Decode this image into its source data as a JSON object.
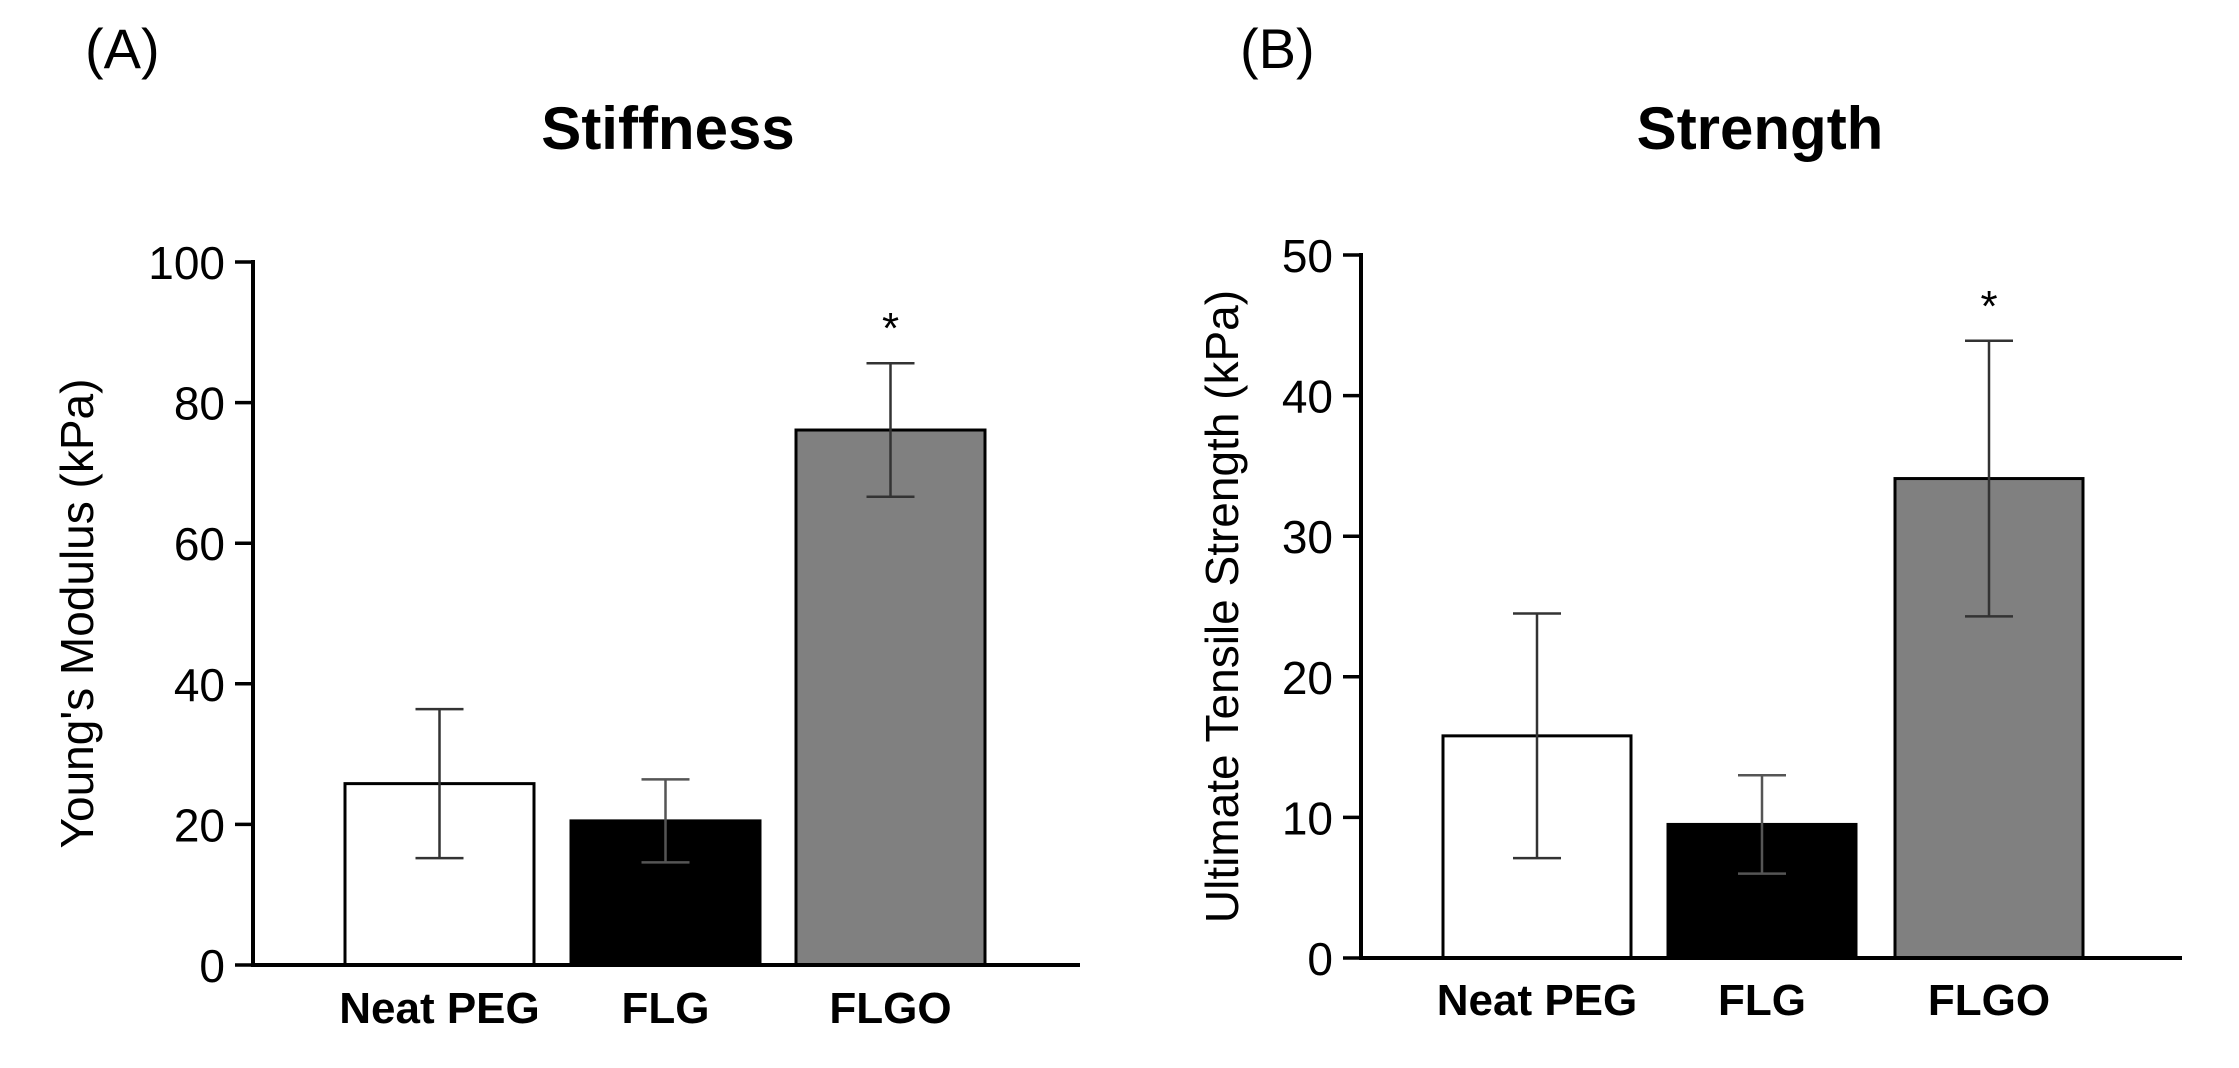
{
  "chart_data": [
    {
      "type": "bar",
      "panel_label": "(A)",
      "title": "Stiffness",
      "xlabel": "",
      "ylabel": "Young's Modulus (kPa)",
      "categories": [
        "Neat PEG",
        "FLG",
        "FLGO"
      ],
      "values": [
        25.8,
        20.5,
        76.1
      ],
      "error": [
        10.6,
        5.9,
        9.5
      ],
      "ylim": [
        0,
        100
      ],
      "yticks": [
        0,
        20,
        40,
        60,
        80,
        100
      ],
      "ytick_labels": [
        "0",
        "20",
        "40",
        "60",
        "80",
        "100"
      ],
      "bar_colors": [
        "#ffffff",
        "#000000",
        "#808080"
      ],
      "annotations": [
        "",
        "",
        "*"
      ],
      "grid": false
    },
    {
      "type": "bar",
      "panel_label": "(B)",
      "title": "Strength",
      "xlabel": "",
      "ylabel": "Ultimate Tensile Strength (kPa)",
      "categories": [
        "Neat PEG",
        "FLG",
        "FLGO"
      ],
      "values": [
        15.8,
        9.5,
        34.1
      ],
      "error": [
        8.7,
        3.5,
        9.8
      ],
      "ylim": [
        0,
        50
      ],
      "yticks": [
        0,
        10,
        20,
        30,
        40,
        50
      ],
      "ytick_labels": [
        "0",
        "10",
        "20",
        "30",
        "40",
        "50"
      ],
      "bar_colors": [
        "#ffffff",
        "#000000",
        "#808080"
      ],
      "annotations": [
        "",
        "",
        "*"
      ],
      "grid": false
    }
  ]
}
